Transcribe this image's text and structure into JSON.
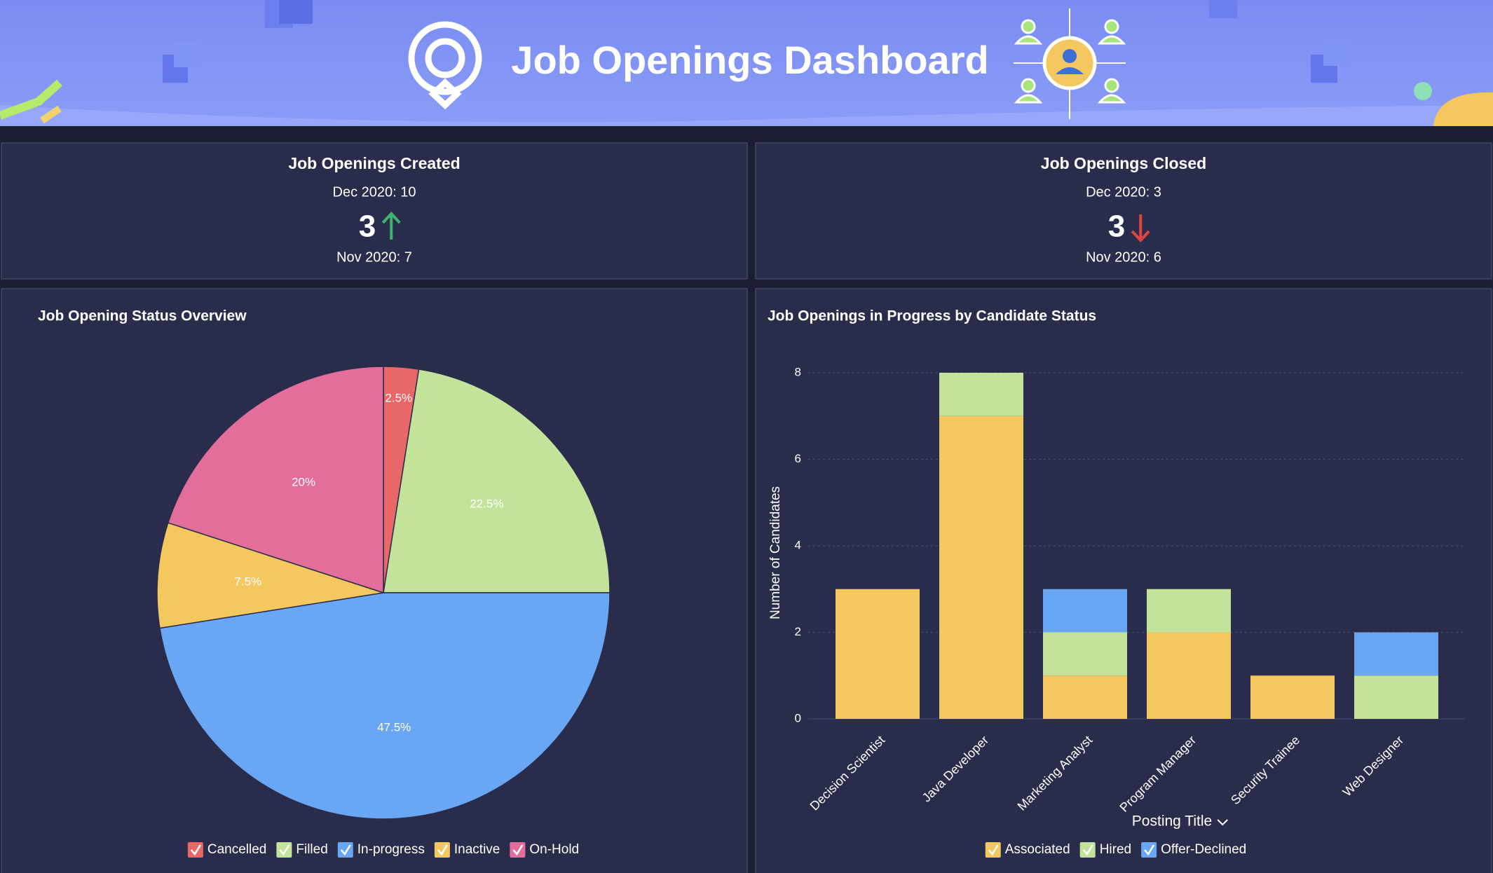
{
  "header": {
    "title": "Job Openings Dashboard"
  },
  "kpis": [
    {
      "title": "Job Openings Created",
      "current": "Dec 2020: 10",
      "change": 3,
      "trend": "up",
      "previous": "Nov 2020: 7"
    },
    {
      "title": "Job Openings Closed",
      "current": "Dec 2020: 3",
      "change": 3,
      "trend": "down",
      "previous": "Nov 2020: 6"
    }
  ],
  "chart_data": [
    {
      "type": "pie",
      "title": "Job Opening Status Overview",
      "categories": [
        "Cancelled",
        "Filled",
        "In-progress",
        "Inactive",
        "On-Hold"
      ],
      "values": [
        2.5,
        22.5,
        47.5,
        7.5,
        20
      ],
      "value_labels": [
        "2.5%",
        "22.5%",
        "47.5%",
        "7.5%",
        "20%"
      ],
      "colors": [
        "#e8686a",
        "#c3e29a",
        "#69a6f4",
        "#f5c85f",
        "#e46e9b"
      ]
    },
    {
      "type": "bar",
      "stacked": true,
      "title": "Job Openings in Progress by Candidate Status",
      "categories": [
        "Decision Scientist",
        "Java Developer",
        "Marketing Analyst",
        "Program Manager",
        "Security Trainee",
        "Web Designer"
      ],
      "series": [
        {
          "name": "Associated",
          "color": "#f5c85f",
          "values": [
            3,
            7,
            1,
            2,
            1,
            0
          ]
        },
        {
          "name": "Hired",
          "color": "#c3e29a",
          "values": [
            0,
            1,
            1,
            1,
            0,
            1
          ]
        },
        {
          "name": "Offer-Declined",
          "color": "#69a6f4",
          "values": [
            0,
            0,
            1,
            0,
            0,
            1
          ]
        }
      ],
      "xlabel": "Posting Title",
      "ylabel": "Number of Candidates",
      "ylim": [
        0,
        8
      ],
      "yticks": [
        0,
        2,
        4,
        6,
        8
      ],
      "grid": true
    }
  ]
}
